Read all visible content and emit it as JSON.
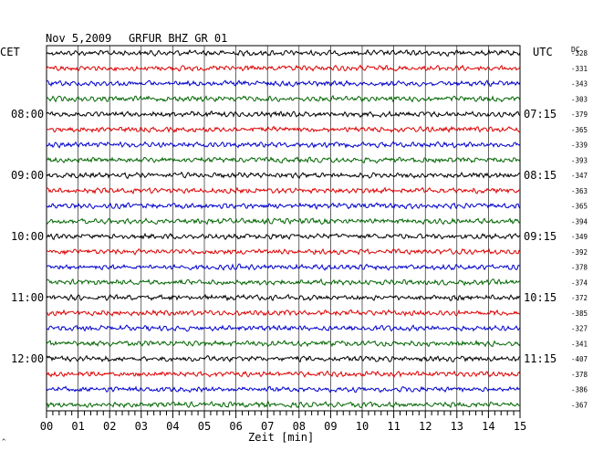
{
  "header": {
    "date": "Nov 5,2009",
    "station": "GRFUR BHZ GR 01",
    "left_zone": "CET",
    "right_zone": "UTC",
    "dc_label": "DC"
  },
  "chart_data": {
    "type": "line",
    "title": "Nov 5,2009  GRFUR BHZ GR 01",
    "xlabel": "Zeit [min]",
    "x_ticks": [
      "00",
      "01",
      "02",
      "03",
      "04",
      "05",
      "06",
      "07",
      "08",
      "09",
      "10",
      "11",
      "12",
      "13",
      "14",
      "15"
    ],
    "xlim": [
      0,
      15
    ],
    "grid": true,
    "trace_colors": [
      "#000000",
      "#dd0000",
      "#0000cc",
      "#006600"
    ],
    "left_hour_labels": [
      {
        "row": 4,
        "label": "08:00"
      },
      {
        "row": 8,
        "label": "09:00"
      },
      {
        "row": 12,
        "label": "10:00"
      },
      {
        "row": 16,
        "label": "11:00"
      },
      {
        "row": 20,
        "label": "12:00"
      }
    ],
    "right_hour_labels": [
      {
        "row": 4,
        "label": "07:15"
      },
      {
        "row": 8,
        "label": "08:15"
      },
      {
        "row": 12,
        "label": "09:15"
      },
      {
        "row": 16,
        "label": "10:15"
      },
      {
        "row": 20,
        "label": "11:15"
      }
    ],
    "dc_values": [
      "-328",
      "-331",
      "-343",
      "-303",
      "-379",
      "-365",
      "-339",
      "-393",
      "-347",
      "-363",
      "-365",
      "-394",
      "-349",
      "-392",
      "-378",
      "-374",
      "-372",
      "-385",
      "-327",
      "-341",
      "-407",
      "-378",
      "-386",
      "-367"
    ]
  },
  "footer_mark": "^"
}
